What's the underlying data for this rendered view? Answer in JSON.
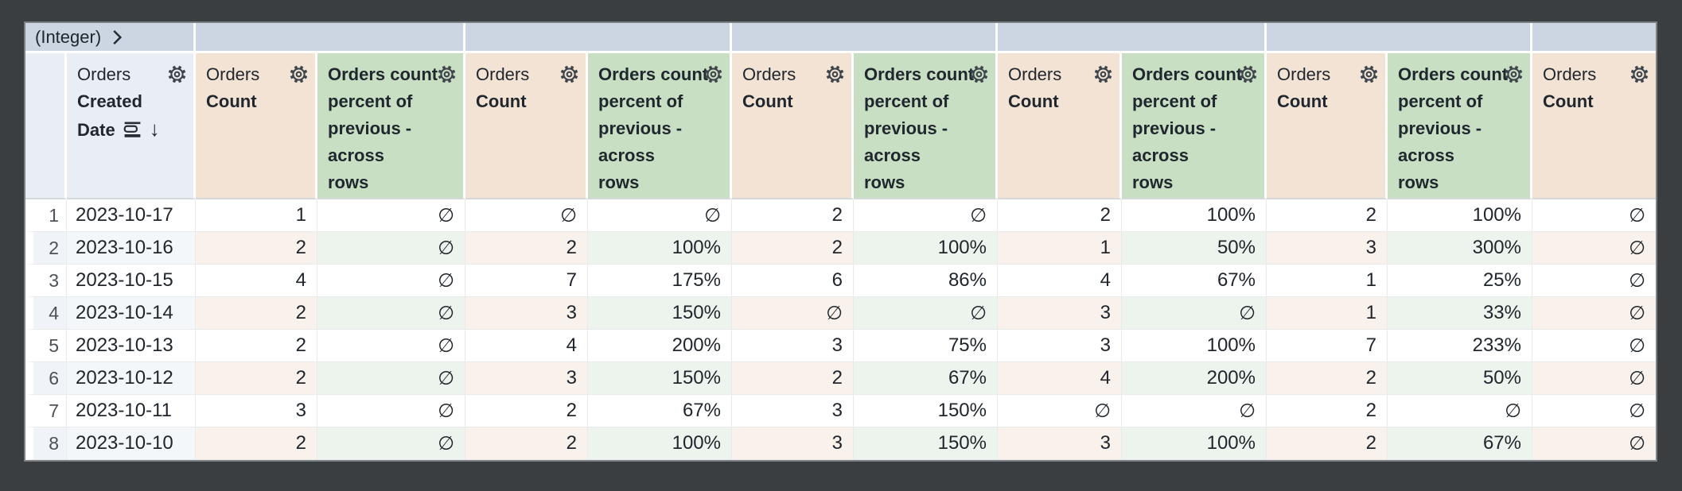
{
  "colors": {
    "window_background": "#3a3e41",
    "pivot_header_bg": "#ccd6e2",
    "dimension_header_bg": "#e9eef4",
    "measure_header_bg": "#f2e3d4",
    "calc_header_bg": "#c8dfc3",
    "row_number_tint": "#f0f4f8",
    "dimension_row_tint": "#f4f7fa",
    "measure_row_tint": "#f9f1eb",
    "calc_row_tint": "#edf4ee"
  },
  "null_symbol": "∅",
  "pivot_row": {
    "cells": [
      {
        "label": "(Integer)",
        "span": 2,
        "icon": "chevron-right-icon"
      },
      {
        "label": "",
        "span": 2
      },
      {
        "label": "",
        "span": 2
      },
      {
        "label": "",
        "span": 2
      },
      {
        "label": "",
        "span": 2
      },
      {
        "label": "",
        "span": 2
      },
      {
        "label": "",
        "span": 1
      }
    ]
  },
  "columns": [
    {
      "type": "row_number",
      "label": ""
    },
    {
      "type": "dimension",
      "view": "Orders",
      "field": "Created Date",
      "sort": "desc",
      "icons": [
        "layers-icon",
        "sort-desc-arrow-icon",
        "gear-icon"
      ]
    },
    {
      "type": "measure",
      "view": "Orders",
      "field": "Count",
      "icons": [
        "gear-icon"
      ]
    },
    {
      "type": "table_calculation",
      "label": "Orders count percent of previous - across rows",
      "icons": [
        "gear-icon"
      ]
    },
    {
      "type": "measure",
      "view": "Orders",
      "field": "Count",
      "icons": [
        "gear-icon"
      ]
    },
    {
      "type": "table_calculation",
      "label": "Orders count percent of previous - across rows",
      "icons": [
        "gear-icon"
      ]
    },
    {
      "type": "measure",
      "view": "Orders",
      "field": "Count",
      "icons": [
        "gear-icon"
      ]
    },
    {
      "type": "table_calculation",
      "label": "Orders count percent of previous - across rows",
      "icons": [
        "gear-icon"
      ]
    },
    {
      "type": "measure",
      "view": "Orders",
      "field": "Count",
      "icons": [
        "gear-icon"
      ]
    },
    {
      "type": "table_calculation",
      "label": "Orders count percent of previous - across rows",
      "icons": [
        "gear-icon"
      ]
    },
    {
      "type": "measure",
      "view": "Orders",
      "field": "Count",
      "icons": [
        "gear-icon"
      ]
    },
    {
      "type": "table_calculation",
      "label": "Orders count percent of previous - across rows",
      "icons": [
        "gear-icon"
      ]
    },
    {
      "type": "measure",
      "view": "Orders",
      "field": "Count",
      "icons": [
        "gear-icon"
      ]
    }
  ],
  "rows": [
    {
      "row_number": "1",
      "cells": [
        "2023-10-17",
        "1",
        "∅",
        "∅",
        "∅",
        "2",
        "∅",
        "2",
        "100%",
        "2",
        "100%",
        "∅"
      ]
    },
    {
      "row_number": "2",
      "cells": [
        "2023-10-16",
        "2",
        "∅",
        "2",
        "100%",
        "2",
        "100%",
        "1",
        "50%",
        "3",
        "300%",
        "∅"
      ]
    },
    {
      "row_number": "3",
      "cells": [
        "2023-10-15",
        "4",
        "∅",
        "7",
        "175%",
        "6",
        "86%",
        "4",
        "67%",
        "1",
        "25%",
        "∅"
      ]
    },
    {
      "row_number": "4",
      "cells": [
        "2023-10-14",
        "2",
        "∅",
        "3",
        "150%",
        "∅",
        "∅",
        "3",
        "∅",
        "1",
        "33%",
        "∅"
      ]
    },
    {
      "row_number": "5",
      "cells": [
        "2023-10-13",
        "2",
        "∅",
        "4",
        "200%",
        "3",
        "75%",
        "3",
        "100%",
        "7",
        "233%",
        "∅"
      ]
    },
    {
      "row_number": "6",
      "cells": [
        "2023-10-12",
        "2",
        "∅",
        "3",
        "150%",
        "2",
        "67%",
        "4",
        "200%",
        "2",
        "50%",
        "∅"
      ]
    },
    {
      "row_number": "7",
      "cells": [
        "2023-10-11",
        "3",
        "∅",
        "2",
        "67%",
        "3",
        "150%",
        "∅",
        "∅",
        "2",
        "∅",
        "∅"
      ]
    },
    {
      "row_number": "8",
      "cells": [
        "2023-10-10",
        "2",
        "∅",
        "2",
        "100%",
        "3",
        "150%",
        "3",
        "100%",
        "2",
        "67%",
        "∅"
      ]
    }
  ]
}
